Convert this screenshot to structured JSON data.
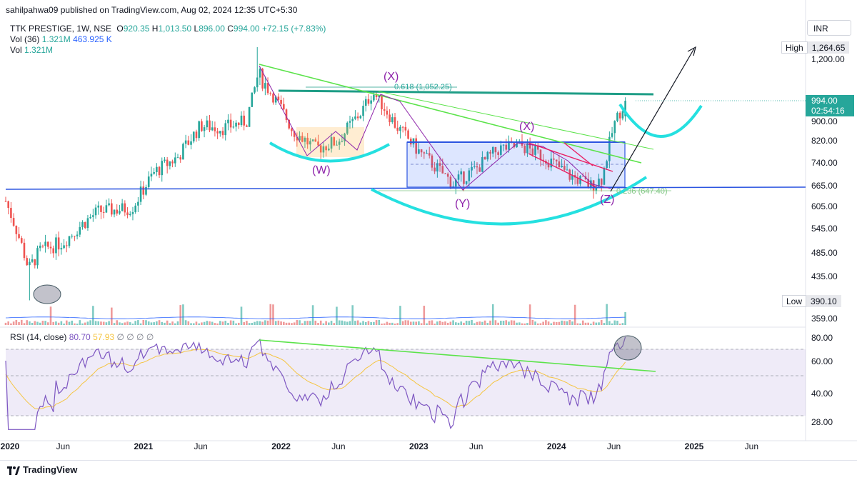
{
  "header": {
    "publisher": "sahilpahwa09 published on TradingView.com, Aug 02, 2024 12:35 UTC+5:30",
    "symbol": "TTK PRESTIGE, 1W, NSE",
    "ohlc": {
      "o_label": "O",
      "o": "920.35",
      "h_label": "H",
      "h": "1,013.50",
      "l_label": "L",
      "l": "896.00",
      "c_label": "C",
      "c": "994.00",
      "change": "+72.15 (+7.83%)"
    },
    "vol36_label": "Vol (36)",
    "vol36_a": "1.321M",
    "vol36_b": "463.925 K",
    "vol_label": "Vol",
    "vol_value": "1.321M",
    "currency": "INR"
  },
  "price_axis": {
    "ticks": [
      "1,200.00",
      "900.00",
      "820.00",
      "740.00",
      "665.00",
      "605.00",
      "545.00",
      "485.00",
      "435.00",
      "359.00"
    ],
    "high_label": "High",
    "high_value": "1,264.65",
    "low_label": "Low",
    "low_value": "390.10",
    "last_price": "994.00",
    "countdown": "02:54:16"
  },
  "rsi": {
    "label": "RSI (14, close)",
    "value": "80.70",
    "ma": "57.93",
    "extras": "∅ ∅ ∅ ∅",
    "ticks": [
      "80.00",
      "60.00",
      "40.00",
      "28.00"
    ]
  },
  "time_axis": {
    "labels": [
      {
        "text": "2020",
        "bold": true
      },
      {
        "text": "Jun",
        "bold": false
      },
      {
        "text": "2021",
        "bold": true
      },
      {
        "text": "Jun",
        "bold": false
      },
      {
        "text": "2022",
        "bold": true
      },
      {
        "text": "Jun",
        "bold": false
      },
      {
        "text": "2023",
        "bold": true
      },
      {
        "text": "Jun",
        "bold": false
      },
      {
        "text": "2024",
        "bold": true
      },
      {
        "text": "Jun",
        "bold": false
      },
      {
        "text": "2025",
        "bold": true
      },
      {
        "text": "Jun",
        "bold": false
      }
    ]
  },
  "annotations": {
    "wave_w": "(W)",
    "wave_x1": "(X)",
    "wave_y": "(Y)",
    "wave_x2": "(X)",
    "wave_z": "(Z)",
    "fib_618": "0.618 (1,052.25)",
    "fib_236": "0.236 (647.40)"
  },
  "footer": {
    "brand": "TradingView"
  },
  "colors": {
    "up": "#26a69a",
    "down": "#ef5350",
    "rsi_line": "#7e57c2",
    "rsi_ma": "#f5c542",
    "trend_green": "#5be34a",
    "arc_cyan": "#25e0e0",
    "resistance": "#1e9d86",
    "support_blue": "#2b54e0",
    "wave_purple": "#8e24aa",
    "channel_pink": "#e91e63"
  },
  "chart_data": {
    "type": "candlestick",
    "title": "TTK PRESTIGE, 1W, NSE",
    "x_range": [
      "2020",
      "2025 Jun"
    ],
    "y_range": [
      359,
      1264.65
    ],
    "last": {
      "open": 920.35,
      "high": 1013.5,
      "low": 896.0,
      "close": 994.0,
      "change": 72.15,
      "change_pct": 7.83
    },
    "high": 1264.65,
    "low": 390.1,
    "key_prices": [
      {
        "label": "0.618",
        "price": 1052.25
      },
      {
        "label": "0.236",
        "price": 647.4
      }
    ],
    "rsi": {
      "period": 14,
      "value": 80.7,
      "ma": 57.93,
      "bands": [
        70,
        50,
        30
      ]
    },
    "approx_path": [
      {
        "t": "2020-01",
        "price": 620
      },
      {
        "t": "2020-03",
        "price": 450
      },
      {
        "t": "2020-04",
        "price": 490
      },
      {
        "t": "2020-06",
        "price": 510
      },
      {
        "t": "2020-09",
        "price": 590
      },
      {
        "t": "2020-12",
        "price": 600
      },
      {
        "t": "2021-02",
        "price": 710
      },
      {
        "t": "2021-04",
        "price": 760
      },
      {
        "t": "2021-06",
        "price": 880
      },
      {
        "t": "2021-08",
        "price": 870
      },
      {
        "t": "2021-10",
        "price": 900
      },
      {
        "t": "2021-11",
        "price": 1130
      },
      {
        "t": "2021-12",
        "price": 1050
      },
      {
        "t": "2022-02",
        "price": 860
      },
      {
        "t": "2022-04",
        "price": 790
      },
      {
        "t": "2022-06",
        "price": 820
      },
      {
        "t": "2022-08",
        "price": 940
      },
      {
        "t": "2022-09",
        "price": 1040
      },
      {
        "t": "2022-11",
        "price": 880
      },
      {
        "t": "2023-01",
        "price": 780
      },
      {
        "t": "2023-04",
        "price": 670
      },
      {
        "t": "2023-06",
        "price": 720
      },
      {
        "t": "2023-08",
        "price": 790
      },
      {
        "t": "2023-10",
        "price": 800
      },
      {
        "t": "2023-12",
        "price": 760
      },
      {
        "t": "2024-02",
        "price": 700
      },
      {
        "t": "2024-04",
        "price": 665
      },
      {
        "t": "2024-05",
        "price": 690
      },
      {
        "t": "2024-06",
        "price": 880
      },
      {
        "t": "2024-07",
        "price": 994
      }
    ]
  }
}
